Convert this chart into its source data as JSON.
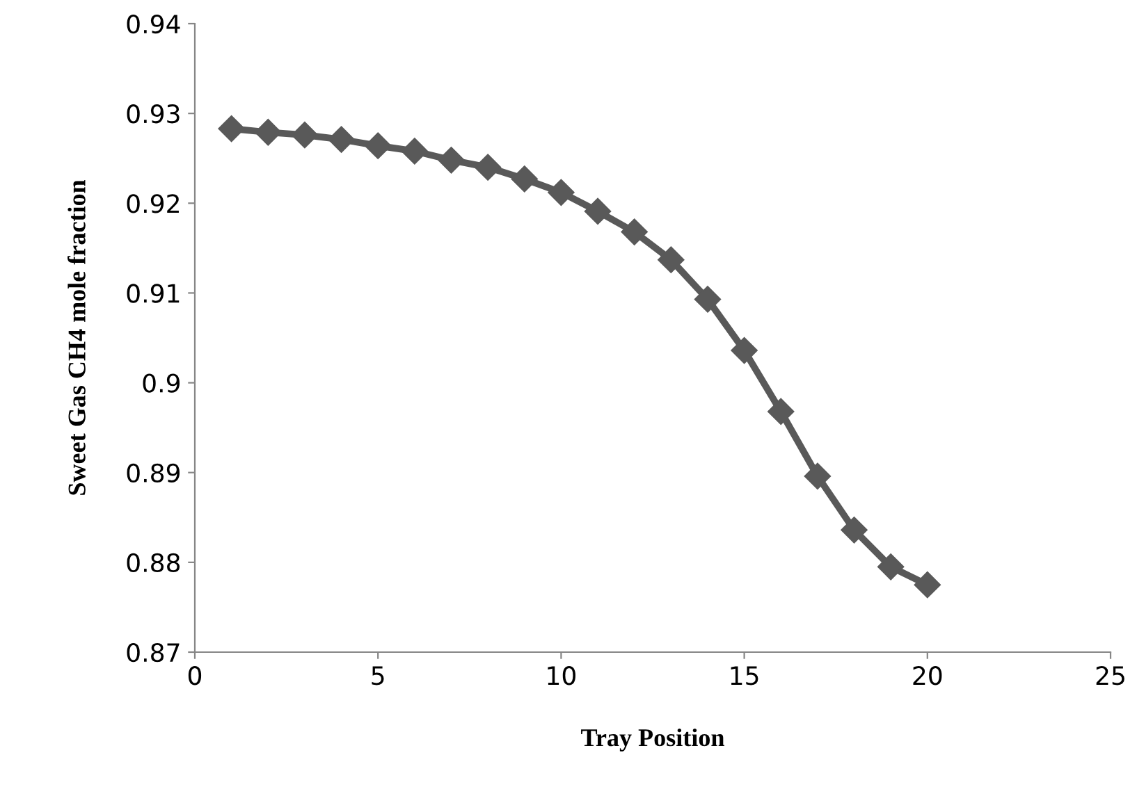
{
  "chart_data": {
    "type": "line",
    "xlabel": "Tray Position",
    "ylabel": "Sweet Gas CH4 mole fraction",
    "x": [
      1,
      2,
      3,
      4,
      5,
      6,
      7,
      8,
      9,
      10,
      11,
      12,
      13,
      14,
      15,
      16,
      17,
      18,
      19,
      20
    ],
    "series": [
      {
        "color": "#595959",
        "values": [
          0.9283,
          0.9279,
          0.9276,
          0.9271,
          0.9264,
          0.9258,
          0.9248,
          0.924,
          0.9227,
          0.9212,
          0.9191,
          0.9168,
          0.9137,
          0.9093,
          0.9036,
          0.8968,
          0.8896,
          0.8836,
          0.8795,
          0.8775
        ]
      }
    ],
    "xlim": [
      0,
      25
    ],
    "xticks": [
      0,
      5,
      10,
      15,
      20,
      25
    ],
    "ylim": [
      0.87,
      0.94
    ],
    "yticks": [
      0.87,
      0.88,
      0.89,
      0.9,
      0.91,
      0.92,
      0.93,
      0.94
    ],
    "marker": "diamond",
    "line_style": "solid",
    "grid": false,
    "legend": false
  }
}
